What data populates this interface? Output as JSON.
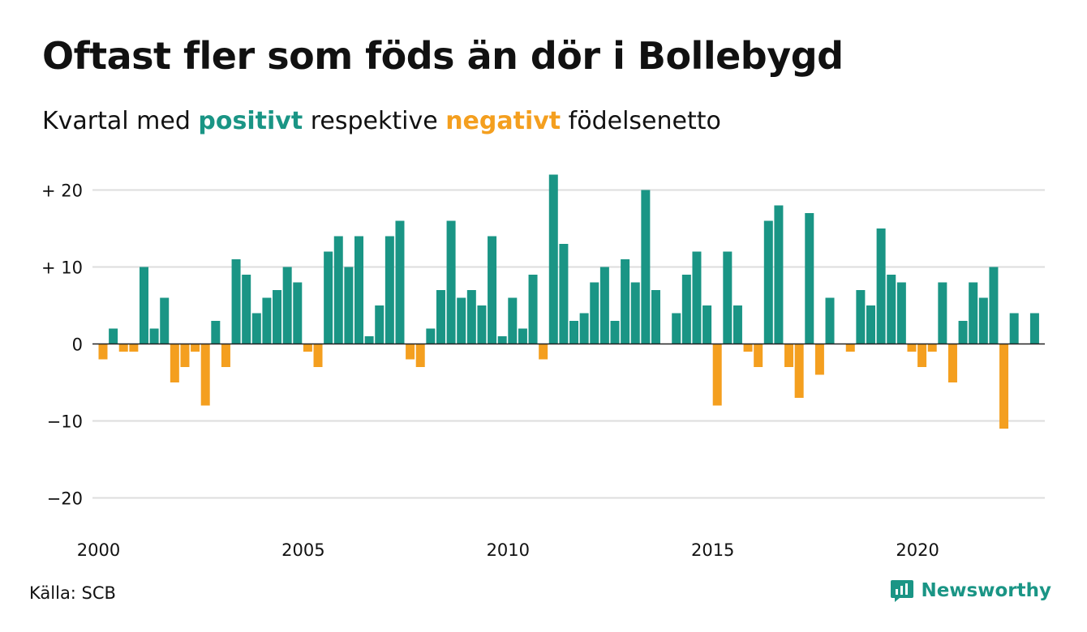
{
  "title": "Oftast fler som föds än dör i Bollebygd",
  "subtitle": {
    "prefix": "Kvartal med ",
    "positive_word": "positivt",
    "middle": " respektive ",
    "negative_word": "negativt",
    "suffix": " födelsenetto"
  },
  "source": "Källa: SCB",
  "brand": "Newsworthy",
  "colors": {
    "positive": "#1a9585",
    "negative": "#f49f1f",
    "grid": "#dddddd",
    "axis": "#222222"
  },
  "chart_data": {
    "type": "bar",
    "x_start": "2000-Q1",
    "x_end": "2023-Q1",
    "y_ticks": [
      {
        "value": 20,
        "label": "+ 20"
      },
      {
        "value": 10,
        "label": "+ 10"
      },
      {
        "value": 0,
        "label": "0"
      },
      {
        "value": -10,
        "label": "−10"
      },
      {
        "value": -20,
        "label": "−20"
      }
    ],
    "x_ticks": [
      "2000",
      "2005",
      "2010",
      "2015",
      "2020"
    ],
    "ylim": [
      -20,
      22
    ],
    "grid": true,
    "values": [
      -2,
      2,
      -1,
      -1,
      10,
      2,
      6,
      -5,
      -3,
      -1,
      -8,
      3,
      -3,
      11,
      9,
      4,
      6,
      7,
      10,
      8,
      -1,
      -3,
      12,
      14,
      10,
      14,
      1,
      5,
      14,
      16,
      -2,
      -3,
      2,
      7,
      16,
      6,
      7,
      5,
      14,
      1,
      6,
      2,
      9,
      -2,
      22,
      13,
      3,
      4,
      8,
      10,
      3,
      11,
      8,
      20,
      7,
      0,
      4,
      9,
      12,
      5,
      -8,
      12,
      5,
      -1,
      -3,
      16,
      18,
      -3,
      -7,
      17,
      -4,
      6,
      0,
      -1,
      7,
      5,
      15,
      9,
      8,
      -1,
      -3,
      -1,
      8,
      -5,
      3,
      8,
      6,
      10,
      -11,
      4,
      0,
      4
    ]
  }
}
